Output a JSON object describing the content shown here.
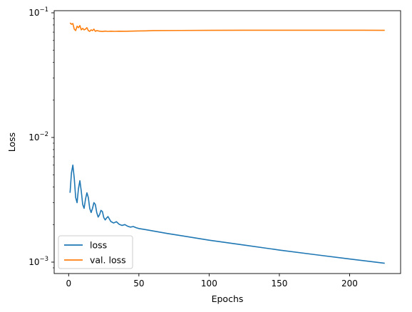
{
  "chart_data": {
    "type": "line",
    "title": "",
    "xlabel": "Epochs",
    "ylabel": "Loss",
    "yscale": "log",
    "xlim": [
      -10.3,
      236.3
    ],
    "ylim": [
      0.00081,
      0.104
    ],
    "xticks": [
      0,
      50,
      100,
      150,
      200
    ],
    "xtick_labels": [
      "0",
      "50",
      "100",
      "150",
      "200"
    ],
    "yticks": [
      0.001,
      0.01,
      0.1
    ],
    "ytick_labels": [
      {
        "base": "10",
        "exp": "−3"
      },
      {
        "base": "10",
        "exp": "−2"
      },
      {
        "base": "10",
        "exp": "−1"
      }
    ],
    "grid": false,
    "legend": {
      "position": "lower-left"
    },
    "series": [
      {
        "name": "loss",
        "color": "#1f77b4",
        "x": [
          1,
          2,
          3,
          4,
          5,
          6,
          7,
          8,
          9,
          10,
          11,
          12,
          13,
          14,
          15,
          16,
          17,
          18,
          19,
          20,
          21,
          22,
          23,
          24,
          25,
          26,
          27,
          28,
          29,
          30,
          32,
          34,
          36,
          38,
          40,
          42,
          44,
          46,
          48,
          50,
          55,
          60,
          70,
          80,
          100,
          125,
          150,
          175,
          200,
          225
        ],
        "y": [
          0.0036,
          0.0052,
          0.006,
          0.0047,
          0.0033,
          0.003,
          0.0039,
          0.0045,
          0.0037,
          0.0029,
          0.0027,
          0.0032,
          0.0036,
          0.0033,
          0.0027,
          0.0025,
          0.0027,
          0.003,
          0.0029,
          0.0025,
          0.0023,
          0.0024,
          0.0026,
          0.00255,
          0.00228,
          0.00218,
          0.00226,
          0.00232,
          0.00222,
          0.00212,
          0.00206,
          0.00211,
          0.00201,
          0.00197,
          0.002,
          0.00194,
          0.00191,
          0.00193,
          0.00189,
          0.00186,
          0.00182,
          0.00178,
          0.0017,
          0.00163,
          0.0015,
          0.00137,
          0.00125,
          0.00115,
          0.00106,
          0.00098
        ]
      },
      {
        "name": "val. loss",
        "color": "#ff7f0e",
        "x": [
          1,
          2,
          3,
          4,
          5,
          6,
          7,
          8,
          9,
          10,
          11,
          12,
          13,
          14,
          15,
          16,
          17,
          18,
          19,
          20,
          22,
          24,
          26,
          28,
          30,
          33,
          36,
          40,
          45,
          50,
          55,
          60,
          80,
          100,
          125,
          150,
          175,
          200,
          225
        ],
        "y": [
          0.083,
          0.081,
          0.082,
          0.074,
          0.072,
          0.078,
          0.076,
          0.079,
          0.073,
          0.075,
          0.073,
          0.074,
          0.076,
          0.072,
          0.071,
          0.073,
          0.072,
          0.074,
          0.071,
          0.072,
          0.0712,
          0.0708,
          0.0713,
          0.0709,
          0.0712,
          0.071,
          0.0712,
          0.0711,
          0.0713,
          0.0715,
          0.0717,
          0.072,
          0.0722,
          0.0724,
          0.0725,
          0.0725,
          0.0725,
          0.0725,
          0.0724
        ]
      }
    ]
  }
}
